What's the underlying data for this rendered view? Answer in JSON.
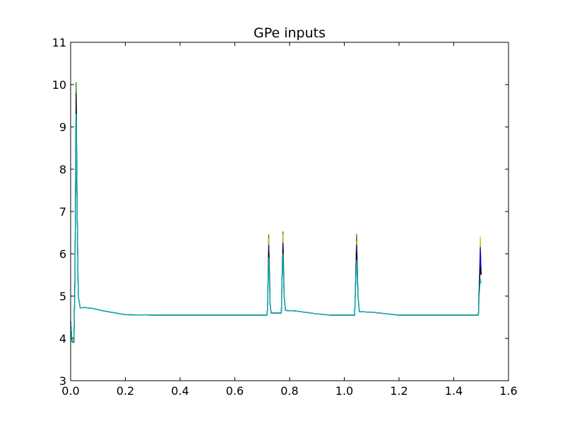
{
  "chart_data": {
    "type": "line",
    "title": "GPe inputs",
    "xlabel": "",
    "ylabel": "",
    "xlim": [
      0.0,
      1.6
    ],
    "ylim": [
      3,
      11
    ],
    "xticks": [
      "0.0",
      "0.2",
      "0.4",
      "0.6",
      "0.8",
      "1.0",
      "1.2",
      "1.4",
      "1.6"
    ],
    "yticks": [
      "3",
      "4",
      "5",
      "6",
      "7",
      "8",
      "9",
      "10",
      "11"
    ],
    "grid": false,
    "legend": "none",
    "series": [
      {
        "color": "#008000",
        "values": [
          [
            0.0,
            4.4
          ],
          [
            0.005,
            3.92
          ],
          [
            0.012,
            3.9
          ],
          [
            0.016,
            5.5
          ],
          [
            0.02,
            10.05
          ],
          [
            0.024,
            7.0
          ],
          [
            0.028,
            5.0
          ],
          [
            0.035,
            4.72
          ],
          [
            0.05,
            4.73
          ],
          [
            0.08,
            4.71
          ],
          [
            0.12,
            4.65
          ],
          [
            0.2,
            4.56
          ],
          [
            0.3,
            4.55
          ],
          [
            0.5,
            4.55
          ],
          [
            0.718,
            4.55
          ],
          [
            0.72,
            4.8
          ],
          [
            0.724,
            6.45
          ],
          [
            0.729,
            4.8
          ],
          [
            0.733,
            4.6
          ],
          [
            0.77,
            4.6
          ],
          [
            0.772,
            5.2
          ],
          [
            0.776,
            6.52
          ],
          [
            0.78,
            5.0
          ],
          [
            0.785,
            4.66
          ],
          [
            0.82,
            4.65
          ],
          [
            0.9,
            4.58
          ],
          [
            0.95,
            4.55
          ],
          [
            1.038,
            4.55
          ],
          [
            1.04,
            5.0
          ],
          [
            1.045,
            6.46
          ],
          [
            1.05,
            5.0
          ],
          [
            1.055,
            4.63
          ],
          [
            1.1,
            4.62
          ],
          [
            1.2,
            4.55
          ],
          [
            1.3,
            4.55
          ],
          [
            1.49,
            4.55
          ],
          [
            1.494,
            5.3
          ],
          [
            1.497,
            6.2
          ],
          [
            1.5,
            5.5
          ]
        ]
      },
      {
        "color": "#ff0000",
        "values": [
          [
            0.0,
            4.4
          ],
          [
            0.005,
            3.95
          ],
          [
            0.012,
            3.92
          ],
          [
            0.016,
            5.4
          ],
          [
            0.02,
            9.2
          ],
          [
            0.024,
            7.0
          ],
          [
            0.028,
            5.0
          ],
          [
            0.035,
            4.72
          ],
          [
            0.05,
            4.73
          ],
          [
            0.08,
            4.71
          ],
          [
            0.12,
            4.65
          ],
          [
            0.2,
            4.56
          ],
          [
            0.3,
            4.55
          ],
          [
            0.5,
            4.55
          ],
          [
            0.718,
            4.55
          ],
          [
            0.72,
            4.8
          ],
          [
            0.724,
            6.3
          ],
          [
            0.729,
            4.8
          ],
          [
            0.733,
            4.6
          ],
          [
            0.77,
            4.6
          ],
          [
            0.772,
            5.2
          ],
          [
            0.776,
            6.4
          ],
          [
            0.78,
            5.0
          ],
          [
            0.785,
            4.66
          ],
          [
            0.82,
            4.65
          ],
          [
            0.9,
            4.58
          ],
          [
            0.95,
            4.55
          ],
          [
            1.038,
            4.55
          ],
          [
            1.04,
            5.0
          ],
          [
            1.045,
            6.35
          ],
          [
            1.05,
            5.0
          ],
          [
            1.055,
            4.63
          ],
          [
            1.1,
            4.62
          ],
          [
            1.2,
            4.55
          ],
          [
            1.3,
            4.55
          ],
          [
            1.49,
            4.55
          ],
          [
            1.494,
            5.3
          ],
          [
            1.497,
            5.8
          ],
          [
            1.5,
            5.5
          ]
        ]
      },
      {
        "color": "#bfbf00",
        "values": [
          [
            0.0,
            4.4
          ],
          [
            0.005,
            3.95
          ],
          [
            0.012,
            3.92
          ],
          [
            0.016,
            5.4
          ],
          [
            0.02,
            8.9
          ],
          [
            0.024,
            7.0
          ],
          [
            0.028,
            5.0
          ],
          [
            0.035,
            4.72
          ],
          [
            0.05,
            4.73
          ],
          [
            0.08,
            4.71
          ],
          [
            0.12,
            4.65
          ],
          [
            0.2,
            4.56
          ],
          [
            0.3,
            4.55
          ],
          [
            0.5,
            4.55
          ],
          [
            0.718,
            4.55
          ],
          [
            0.72,
            4.8
          ],
          [
            0.724,
            6.35
          ],
          [
            0.729,
            4.8
          ],
          [
            0.733,
            4.6
          ],
          [
            0.77,
            4.6
          ],
          [
            0.772,
            5.2
          ],
          [
            0.776,
            6.45
          ],
          [
            0.78,
            5.0
          ],
          [
            0.785,
            4.66
          ],
          [
            0.82,
            4.65
          ],
          [
            0.9,
            4.58
          ],
          [
            0.95,
            4.55
          ],
          [
            1.038,
            4.55
          ],
          [
            1.04,
            5.0
          ],
          [
            1.045,
            6.3
          ],
          [
            1.05,
            5.0
          ],
          [
            1.055,
            4.63
          ],
          [
            1.1,
            4.62
          ],
          [
            1.2,
            4.55
          ],
          [
            1.3,
            4.55
          ],
          [
            1.49,
            4.55
          ],
          [
            1.494,
            5.4
          ],
          [
            1.497,
            6.4
          ],
          [
            1.5,
            5.5
          ]
        ]
      },
      {
        "color": "#0000ff",
        "values": [
          [
            0.0,
            4.4
          ],
          [
            0.005,
            3.95
          ],
          [
            0.012,
            3.92
          ],
          [
            0.016,
            5.5
          ],
          [
            0.02,
            9.6
          ],
          [
            0.024,
            7.0
          ],
          [
            0.028,
            5.0
          ],
          [
            0.035,
            4.72
          ],
          [
            0.05,
            4.73
          ],
          [
            0.08,
            4.71
          ],
          [
            0.12,
            4.65
          ],
          [
            0.2,
            4.56
          ],
          [
            0.3,
            4.55
          ],
          [
            0.5,
            4.55
          ],
          [
            0.718,
            4.55
          ],
          [
            0.72,
            4.8
          ],
          [
            0.724,
            6.2
          ],
          [
            0.729,
            4.8
          ],
          [
            0.733,
            4.6
          ],
          [
            0.77,
            4.6
          ],
          [
            0.772,
            5.2
          ],
          [
            0.776,
            6.25
          ],
          [
            0.78,
            5.0
          ],
          [
            0.785,
            4.66
          ],
          [
            0.82,
            4.65
          ],
          [
            0.9,
            4.58
          ],
          [
            0.95,
            4.55
          ],
          [
            1.038,
            4.55
          ],
          [
            1.04,
            5.0
          ],
          [
            1.045,
            6.2
          ],
          [
            1.05,
            5.0
          ],
          [
            1.055,
            4.63
          ],
          [
            1.1,
            4.62
          ],
          [
            1.2,
            4.55
          ],
          [
            1.3,
            4.55
          ],
          [
            1.49,
            4.55
          ],
          [
            1.494,
            5.4
          ],
          [
            1.497,
            6.15
          ],
          [
            1.5,
            5.5
          ]
        ]
      },
      {
        "color": "#000000",
        "values": [
          [
            0.0,
            4.4
          ],
          [
            0.005,
            3.95
          ],
          [
            0.012,
            3.92
          ],
          [
            0.016,
            5.5
          ],
          [
            0.02,
            9.8
          ],
          [
            0.024,
            7.0
          ],
          [
            0.028,
            5.0
          ],
          [
            0.035,
            4.72
          ],
          [
            0.05,
            4.73
          ],
          [
            0.08,
            4.71
          ],
          [
            0.12,
            4.65
          ],
          [
            0.2,
            4.56
          ],
          [
            0.3,
            4.55
          ],
          [
            0.5,
            4.55
          ],
          [
            0.718,
            4.55
          ],
          [
            0.72,
            4.8
          ],
          [
            0.724,
            6.05
          ],
          [
            0.729,
            4.8
          ],
          [
            0.733,
            4.6
          ],
          [
            0.77,
            4.6
          ],
          [
            0.772,
            5.2
          ],
          [
            0.776,
            6.1
          ],
          [
            0.78,
            5.0
          ],
          [
            0.785,
            4.66
          ],
          [
            0.82,
            4.65
          ],
          [
            0.9,
            4.58
          ],
          [
            0.95,
            4.55
          ],
          [
            1.038,
            4.55
          ],
          [
            1.04,
            5.0
          ],
          [
            1.045,
            6.05
          ],
          [
            1.05,
            5.0
          ],
          [
            1.055,
            4.63
          ],
          [
            1.1,
            4.62
          ],
          [
            1.2,
            4.55
          ],
          [
            1.3,
            4.55
          ],
          [
            1.49,
            4.55
          ],
          [
            1.494,
            5.3
          ],
          [
            1.497,
            5.7
          ],
          [
            1.5,
            5.5
          ]
        ]
      },
      {
        "color": "#00bfbf",
        "values": [
          [
            0.0,
            4.4
          ],
          [
            0.005,
            3.95
          ],
          [
            0.012,
            3.92
          ],
          [
            0.016,
            5.3
          ],
          [
            0.02,
            9.3
          ],
          [
            0.024,
            7.0
          ],
          [
            0.028,
            5.0
          ],
          [
            0.035,
            4.72
          ],
          [
            0.05,
            4.73
          ],
          [
            0.08,
            4.71
          ],
          [
            0.12,
            4.65
          ],
          [
            0.2,
            4.56
          ],
          [
            0.3,
            4.55
          ],
          [
            0.5,
            4.55
          ],
          [
            0.718,
            4.55
          ],
          [
            0.72,
            4.8
          ],
          [
            0.724,
            5.9
          ],
          [
            0.729,
            4.8
          ],
          [
            0.733,
            4.6
          ],
          [
            0.77,
            4.6
          ],
          [
            0.772,
            5.2
          ],
          [
            0.776,
            6.0
          ],
          [
            0.78,
            5.0
          ],
          [
            0.785,
            4.66
          ],
          [
            0.82,
            4.65
          ],
          [
            0.9,
            4.58
          ],
          [
            0.95,
            4.55
          ],
          [
            1.038,
            4.55
          ],
          [
            1.04,
            5.0
          ],
          [
            1.045,
            5.85
          ],
          [
            1.05,
            5.0
          ],
          [
            1.055,
            4.63
          ],
          [
            1.1,
            4.62
          ],
          [
            1.2,
            4.55
          ],
          [
            1.3,
            4.55
          ],
          [
            1.49,
            4.55
          ],
          [
            1.494,
            5.1
          ],
          [
            1.497,
            5.4
          ],
          [
            1.5,
            5.3
          ]
        ]
      }
    ]
  }
}
